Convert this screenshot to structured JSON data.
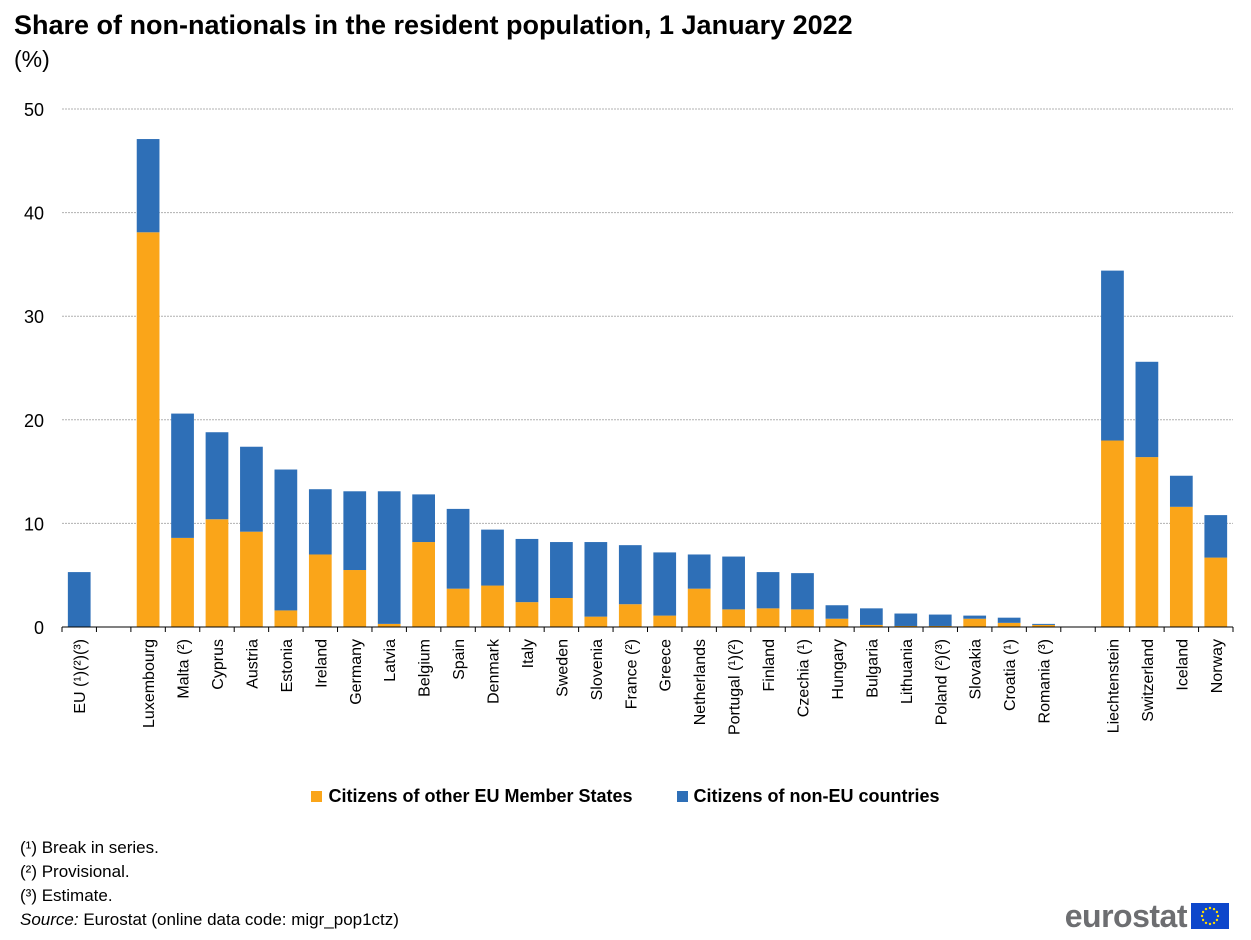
{
  "chart_data": {
    "type": "bar",
    "stacked": true,
    "title": "Share of non-nationals in the resident population, 1 January 2022",
    "subtitle": "(%)",
    "ylim": [
      0,
      50
    ],
    "yticks": [
      0,
      10,
      20,
      30,
      40,
      50
    ],
    "grid": true,
    "legend_position": "bottom",
    "categories": [
      "EU (¹)(²)(³)",
      "",
      "Luxembourg",
      "Malta (²)",
      "Cyprus",
      "Austria",
      "Estonia",
      "Ireland",
      "Germany",
      "Latvia",
      "Belgium",
      "Spain",
      "Denmark",
      "Italy",
      "Sweden",
      "Slovenia",
      "France (²)",
      "Greece",
      "Netherlands",
      "Portugal (¹)(²)",
      "Finland",
      "Czechia (¹)",
      "Hungary",
      "Bulgaria",
      "Lithuania",
      "Poland (²)(³)",
      "Slovakia",
      "Croatia (¹)",
      "Romania (³)",
      "",
      "Liechtenstein",
      "Switzerland",
      "Iceland",
      "Norway"
    ],
    "series": [
      {
        "name": "Citizens of other EU Member States",
        "color": "#faa519",
        "values": [
          0,
          null,
          38.1,
          8.6,
          10.4,
          9.2,
          1.6,
          7.0,
          5.5,
          0.3,
          8.2,
          3.7,
          4.0,
          2.4,
          2.8,
          1.0,
          2.2,
          1.1,
          3.7,
          1.7,
          1.8,
          1.7,
          0.8,
          0.2,
          0.1,
          0.1,
          0.8,
          0.4,
          0.2,
          null,
          18.0,
          16.4,
          11.6,
          6.7
        ]
      },
      {
        "name": "Citizens of non-EU countries",
        "color": "#2e6fb7",
        "values": [
          5.3,
          null,
          9.0,
          12.0,
          8.4,
          8.2,
          13.6,
          6.3,
          7.6,
          12.8,
          4.6,
          7.7,
          5.4,
          6.1,
          5.4,
          7.2,
          5.7,
          6.1,
          3.3,
          5.1,
          3.5,
          3.5,
          1.3,
          1.6,
          1.2,
          1.1,
          0.3,
          0.5,
          0.1,
          null,
          16.4,
          9.2,
          3.0,
          4.1
        ]
      }
    ]
  },
  "notes": [
    "(¹) Break in series.",
    "(²) Provisional.",
    "(³) Estimate."
  ],
  "source": {
    "label": "Source:",
    "text": " Eurostat (online data code: migr_pop1ctz)"
  },
  "logo": {
    "text": "eurostat"
  }
}
